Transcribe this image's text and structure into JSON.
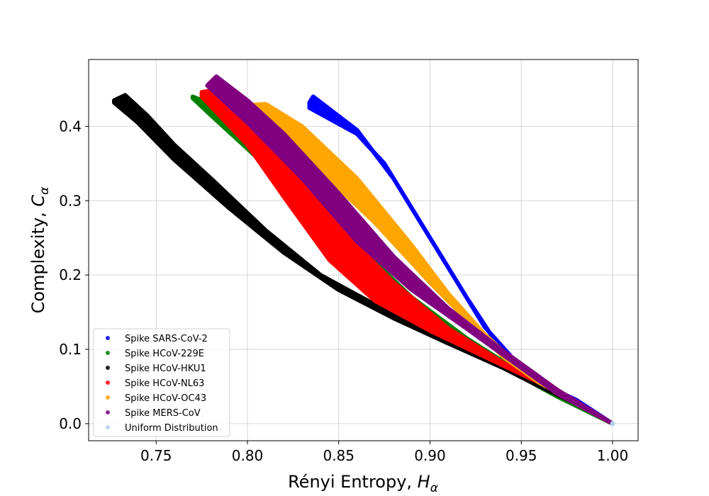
{
  "chart_data": {
    "type": "scatter",
    "title": "",
    "xlabel": "Rényi Entropy, ",
    "xlabel_symbol": "H",
    "xlabel_subscript": "α",
    "ylabel": "Complexity, ",
    "ylabel_symbol": "C",
    "ylabel_subscript": "α",
    "xlim": [
      0.713,
      1.014
    ],
    "ylim": [
      -0.023,
      0.49
    ],
    "xticks": [
      0.75,
      0.8,
      0.85,
      0.9,
      0.95,
      1.0
    ],
    "xtick_labels": [
      "0.75",
      "0.80",
      "0.85",
      "0.90",
      "0.95",
      "1.00"
    ],
    "yticks": [
      0.0,
      0.1,
      0.2,
      0.3,
      0.4
    ],
    "ytick_labels": [
      "0.0",
      "0.1",
      "0.2",
      "0.3",
      "0.4"
    ],
    "grid": true,
    "legend_position": "lower-left",
    "series": [
      {
        "name": "Spike SARS-CoV-2",
        "color": "#0000ff",
        "upper": [
          [
            0.834,
            0.432
          ],
          [
            0.836,
            0.44
          ],
          [
            0.86,
            0.395
          ],
          [
            0.88,
            0.33
          ],
          [
            0.9,
            0.25
          ],
          [
            0.92,
            0.17
          ],
          [
            0.94,
            0.095
          ],
          [
            0.96,
            0.055
          ],
          [
            0.98,
            0.032
          ],
          [
            1.0,
            0.0
          ]
        ],
        "lower": [
          [
            0.834,
            0.425
          ],
          [
            0.86,
            0.39
          ],
          [
            0.875,
            0.35
          ],
          [
            0.89,
            0.29
          ],
          [
            0.91,
            0.21
          ],
          [
            0.93,
            0.13
          ],
          [
            0.95,
            0.075
          ],
          [
            0.97,
            0.042
          ],
          [
            0.99,
            0.015
          ],
          [
            1.0,
            0.0
          ]
        ]
      },
      {
        "name": "Spike HCoV-229E",
        "color": "#008000",
        "upper": [
          [
            0.77,
            0.44
          ],
          [
            0.78,
            0.43
          ],
          [
            0.8,
            0.39
          ],
          [
            0.83,
            0.32
          ],
          [
            0.86,
            0.24
          ],
          [
            0.89,
            0.17
          ],
          [
            0.92,
            0.115
          ],
          [
            0.95,
            0.068
          ],
          [
            0.97,
            0.038
          ],
          [
            1.0,
            0.0
          ]
        ],
        "lower": [
          [
            0.77,
            0.438
          ],
          [
            0.78,
            0.415
          ],
          [
            0.8,
            0.37
          ],
          [
            0.83,
            0.3
          ],
          [
            0.86,
            0.215
          ],
          [
            0.89,
            0.15
          ],
          [
            0.92,
            0.105
          ],
          [
            0.95,
            0.063
          ],
          [
            0.97,
            0.036
          ],
          [
            1.0,
            0.0
          ]
        ]
      },
      {
        "name": "Spike HCoV-HKU1",
        "color": "#000000",
        "upper": [
          [
            0.727,
            0.435
          ],
          [
            0.733,
            0.442
          ],
          [
            0.745,
            0.415
          ],
          [
            0.76,
            0.375
          ],
          [
            0.78,
            0.33
          ],
          [
            0.81,
            0.26
          ],
          [
            0.84,
            0.2
          ],
          [
            0.87,
            0.16
          ],
          [
            0.9,
            0.122
          ],
          [
            0.93,
            0.088
          ],
          [
            0.96,
            0.052
          ],
          [
            0.98,
            0.028
          ],
          [
            1.0,
            0.0
          ]
        ],
        "lower": [
          [
            0.727,
            0.432
          ],
          [
            0.74,
            0.405
          ],
          [
            0.76,
            0.355
          ],
          [
            0.79,
            0.29
          ],
          [
            0.82,
            0.23
          ],
          [
            0.85,
            0.18
          ],
          [
            0.88,
            0.142
          ],
          [
            0.91,
            0.108
          ],
          [
            0.94,
            0.075
          ],
          [
            0.96,
            0.05
          ],
          [
            0.98,
            0.027
          ],
          [
            1.0,
            0.0
          ]
        ]
      },
      {
        "name": "Spike HCoV-NL63",
        "color": "#ff0000",
        "upper": [
          [
            0.775,
            0.446
          ],
          [
            0.78,
            0.448
          ],
          [
            0.8,
            0.405
          ],
          [
            0.82,
            0.35
          ],
          [
            0.85,
            0.265
          ],
          [
            0.88,
            0.19
          ],
          [
            0.91,
            0.128
          ],
          [
            0.94,
            0.082
          ],
          [
            0.97,
            0.045
          ],
          [
            1.0,
            0.0
          ]
        ],
        "lower": [
          [
            0.775,
            0.44
          ],
          [
            0.8,
            0.375
          ],
          [
            0.82,
            0.305
          ],
          [
            0.845,
            0.22
          ],
          [
            0.87,
            0.165
          ],
          [
            0.9,
            0.125
          ],
          [
            0.93,
            0.09
          ],
          [
            0.96,
            0.055
          ],
          [
            0.98,
            0.03
          ],
          [
            1.0,
            0.0
          ]
        ]
      },
      {
        "name": "Spike HCoV-OC43",
        "color": "#ffa500",
        "upper": [
          [
            0.797,
            0.428
          ],
          [
            0.81,
            0.43
          ],
          [
            0.83,
            0.4
          ],
          [
            0.86,
            0.33
          ],
          [
            0.89,
            0.24
          ],
          [
            0.91,
            0.175
          ],
          [
            0.93,
            0.12
          ],
          [
            0.95,
            0.075
          ],
          [
            0.97,
            0.04
          ],
          [
            1.0,
            0.0
          ]
        ],
        "lower": [
          [
            0.797,
            0.425
          ],
          [
            0.815,
            0.4
          ],
          [
            0.84,
            0.34
          ],
          [
            0.87,
            0.27
          ],
          [
            0.9,
            0.19
          ],
          [
            0.92,
            0.14
          ],
          [
            0.94,
            0.09
          ],
          [
            0.96,
            0.055
          ],
          [
            0.98,
            0.028
          ],
          [
            1.0,
            0.0
          ]
        ]
      },
      {
        "name": "Spike MERS-CoV",
        "color": "#800080",
        "upper": [
          [
            0.78,
            0.46
          ],
          [
            0.783,
            0.467
          ],
          [
            0.8,
            0.435
          ],
          [
            0.82,
            0.39
          ],
          [
            0.85,
            0.31
          ],
          [
            0.88,
            0.225
          ],
          [
            0.91,
            0.155
          ],
          [
            0.94,
            0.098
          ],
          [
            0.97,
            0.045
          ],
          [
            1.0,
            0.0
          ]
        ],
        "lower": [
          [
            0.778,
            0.455
          ],
          [
            0.8,
            0.405
          ],
          [
            0.83,
            0.33
          ],
          [
            0.86,
            0.245
          ],
          [
            0.89,
            0.18
          ],
          [
            0.92,
            0.128
          ],
          [
            0.95,
            0.075
          ],
          [
            0.97,
            0.04
          ],
          [
            1.0,
            0.0
          ]
        ]
      },
      {
        "name": "Uniform Distribution",
        "color": "#b0d0ee",
        "upper": [
          [
            1.0,
            0.0
          ]
        ],
        "lower": [
          [
            1.0,
            0.0
          ]
        ]
      }
    ]
  }
}
